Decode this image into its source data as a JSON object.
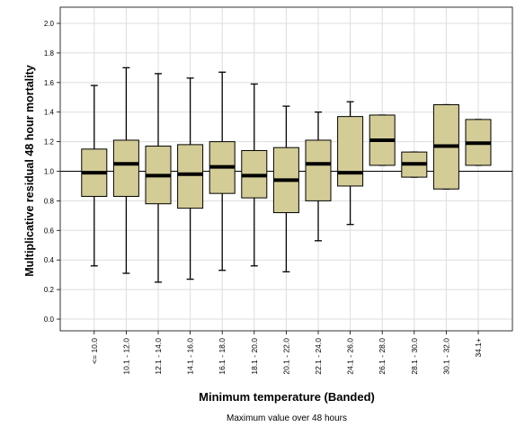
{
  "chart_data": {
    "type": "boxplot",
    "xlabel": "Minimum temperature (Banded)",
    "ylabel": "Multiplicative residual 48 hour mortality",
    "footnote": "Maximum value over 48 hours",
    "ylim": [
      -0.1,
      2.1
    ],
    "yticks": [
      0.0,
      0.2,
      0.4,
      0.6,
      0.8,
      1.0,
      1.2,
      1.4,
      1.6,
      1.8,
      2.0
    ],
    "ytick_labels": [
      "0.0",
      "0.2",
      "0.4",
      "0.6",
      "0.8",
      "1.0",
      "1.2",
      "1.4",
      "1.6",
      "1.8",
      "2.0"
    ],
    "reference_line": 1.0,
    "grid": true,
    "colors": {
      "box_fill": "#d4cc97",
      "box_stroke": "#000000",
      "median": "#000000",
      "grid": "#dddddd"
    },
    "categories": [
      "<= 10.0",
      "10.1 - 12.0",
      "12.1 - 14.0",
      "14.1 - 16.0",
      "16.1 - 18.0",
      "18.1 - 20.0",
      "20.1 - 22.0",
      "22.1 - 24.0",
      "24.1 - 26.0",
      "26.1 - 28.0",
      "28.1 - 30.0",
      "30.1 - 32.0",
      "34.1+"
    ],
    "boxes": [
      {
        "min": 0.36,
        "q1": 0.83,
        "median": 0.99,
        "q3": 1.15,
        "max": 1.58
      },
      {
        "min": 0.31,
        "q1": 0.83,
        "median": 1.05,
        "q3": 1.21,
        "max": 1.7
      },
      {
        "min": 0.25,
        "q1": 0.78,
        "median": 0.97,
        "q3": 1.17,
        "max": 1.66
      },
      {
        "min": 0.27,
        "q1": 0.75,
        "median": 0.98,
        "q3": 1.18,
        "max": 1.63
      },
      {
        "min": 0.33,
        "q1": 0.85,
        "median": 1.03,
        "q3": 1.2,
        "max": 1.67
      },
      {
        "min": 0.36,
        "q1": 0.82,
        "median": 0.97,
        "q3": 1.14,
        "max": 1.59
      },
      {
        "min": 0.32,
        "q1": 0.72,
        "median": 0.94,
        "q3": 1.16,
        "max": 1.44
      },
      {
        "min": 0.53,
        "q1": 0.8,
        "median": 1.05,
        "q3": 1.21,
        "max": 1.4
      },
      {
        "min": 0.64,
        "q1": 0.9,
        "median": 0.99,
        "q3": 1.37,
        "max": 1.47
      },
      {
        "min": 1.04,
        "q1": 1.04,
        "median": 1.21,
        "q3": 1.38,
        "max": 1.38
      },
      {
        "min": 0.96,
        "q1": 0.96,
        "median": 1.05,
        "q3": 1.13,
        "max": 1.13
      },
      {
        "min": 0.88,
        "q1": 0.88,
        "median": 1.17,
        "q3": 1.45,
        "max": 1.45
      },
      {
        "min": 1.04,
        "q1": 1.04,
        "median": 1.19,
        "q3": 1.35,
        "max": 1.35
      }
    ]
  }
}
